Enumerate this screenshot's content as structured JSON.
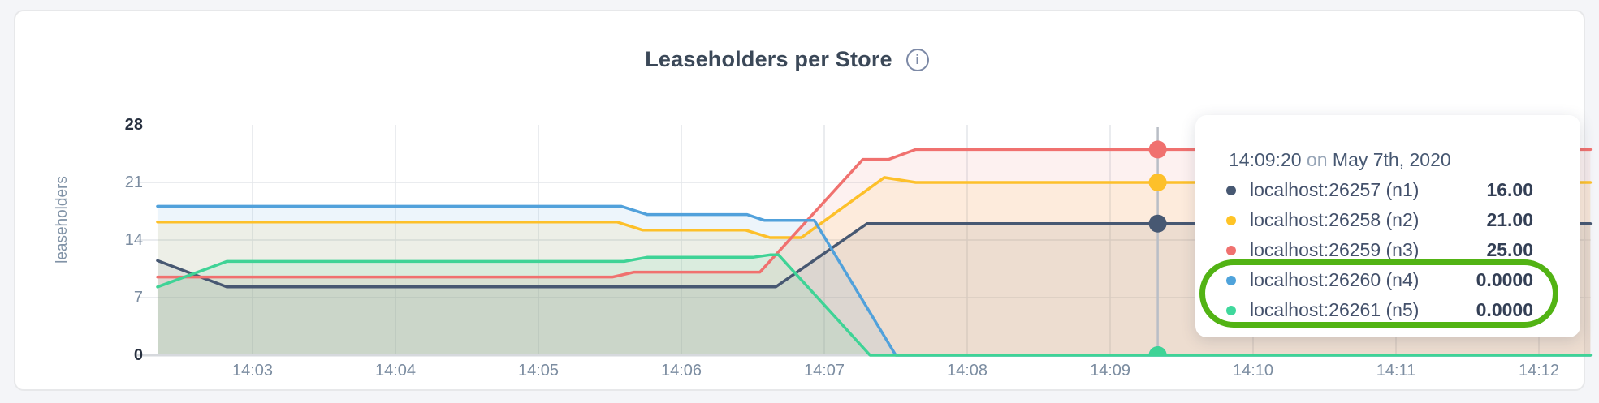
{
  "header": {
    "title": "Leaseholders per Store",
    "info_icon": "i"
  },
  "chart_data": {
    "type": "area",
    "title": "Leaseholders per Store",
    "xlabel": "",
    "ylabel": "leaseholders",
    "ylim": [
      0,
      28
    ],
    "grid": true,
    "x_unit": "time (HH:MM), minutes after 14:00 as t",
    "x_range": [
      2.335,
      12.36
    ],
    "y_ticks": [
      {
        "label": "28",
        "value": 28,
        "bold": true
      },
      {
        "label": "21",
        "value": 21,
        "bold": false
      },
      {
        "label": "14",
        "value": 14,
        "bold": false
      },
      {
        "label": "7",
        "value": 7,
        "bold": false
      },
      {
        "label": "0",
        "value": 0,
        "bold": true
      }
    ],
    "x_ticks": [
      {
        "label": "14:03",
        "t": 3
      },
      {
        "label": "14:04",
        "t": 4
      },
      {
        "label": "14:05",
        "t": 5
      },
      {
        "label": "14:06",
        "t": 6
      },
      {
        "label": "14:07",
        "t": 7
      },
      {
        "label": "14:08",
        "t": 8
      },
      {
        "label": "14:09",
        "t": 9
      },
      {
        "label": "14:10",
        "t": 10
      },
      {
        "label": "14:11",
        "t": 11
      },
      {
        "label": "14:12",
        "t": 12
      }
    ],
    "series": [
      {
        "name": "localhost:26257 (n1)",
        "color": "#475872",
        "points": [
          [
            2.335,
            11.5
          ],
          [
            2.82,
            8.3
          ],
          [
            6.66,
            8.3
          ],
          [
            7.3,
            16
          ],
          [
            12.36,
            16
          ]
        ]
      },
      {
        "name": "localhost:26258 (n2)",
        "color": "#fdc02a",
        "points": [
          [
            2.335,
            16.2
          ],
          [
            5.55,
            16.2
          ],
          [
            5.73,
            15.2
          ],
          [
            6.45,
            15.2
          ],
          [
            6.62,
            14.3
          ],
          [
            6.84,
            14.3
          ],
          [
            7.42,
            21.6
          ],
          [
            7.64,
            21
          ],
          [
            12.36,
            21
          ]
        ]
      },
      {
        "name": "localhost:26259 (n3)",
        "color": "#f0716f",
        "points": [
          [
            2.335,
            9.5
          ],
          [
            5.52,
            9.5
          ],
          [
            5.67,
            10.1
          ],
          [
            6.55,
            10.1
          ],
          [
            7.27,
            23.8
          ],
          [
            7.45,
            23.8
          ],
          [
            7.64,
            25
          ],
          [
            12.36,
            25
          ]
        ]
      },
      {
        "name": "localhost:26260 (n4)",
        "color": "#51a1db",
        "points": [
          [
            2.335,
            18.1
          ],
          [
            5.58,
            18.1
          ],
          [
            5.76,
            17.1
          ],
          [
            6.46,
            17.1
          ],
          [
            6.58,
            16.4
          ],
          [
            6.93,
            16.4
          ],
          [
            7.5,
            0
          ],
          [
            12.36,
            0
          ]
        ]
      },
      {
        "name": "localhost:26261 (n5)",
        "color": "#3fd396",
        "points": [
          [
            2.335,
            8.3
          ],
          [
            2.82,
            11.4
          ],
          [
            5.6,
            11.4
          ],
          [
            5.76,
            11.9
          ],
          [
            6.5,
            11.9
          ],
          [
            6.62,
            12.2
          ],
          [
            6.68,
            12.2
          ],
          [
            7.32,
            0
          ],
          [
            12.36,
            0
          ]
        ]
      }
    ],
    "hover": {
      "label": "14:09:20",
      "t": 9.333,
      "values": [
        16,
        21,
        25,
        0,
        0
      ]
    },
    "legend_position": "tooltip"
  },
  "tooltip": {
    "time": "14:09:20",
    "on_word": "on",
    "date": "May 7th, 2020",
    "rows": [
      {
        "name": "localhost:26257 (n1)",
        "value": "16.00",
        "color": "#475872"
      },
      {
        "name": "localhost:26258 (n2)",
        "value": "21.00",
        "color": "#ffc426"
      },
      {
        "name": "localhost:26259 (n3)",
        "value": "25.00",
        "color": "#f0716f"
      },
      {
        "name": "localhost:26260 (n4)",
        "value": "0.0000",
        "color": "#4fa3db"
      },
      {
        "name": "localhost:26261 (n5)",
        "value": "0.0000",
        "color": "#3fd89c"
      }
    ],
    "annotation_color": "#52b314"
  },
  "colors": {
    "grid": "#e3e6ea",
    "baseline": "#d6d9dd",
    "hover_line": "#b9bec6",
    "title_text": "#3b4858",
    "axis_text": "#7c8da1",
    "axis_text_bold": "#27303f"
  }
}
